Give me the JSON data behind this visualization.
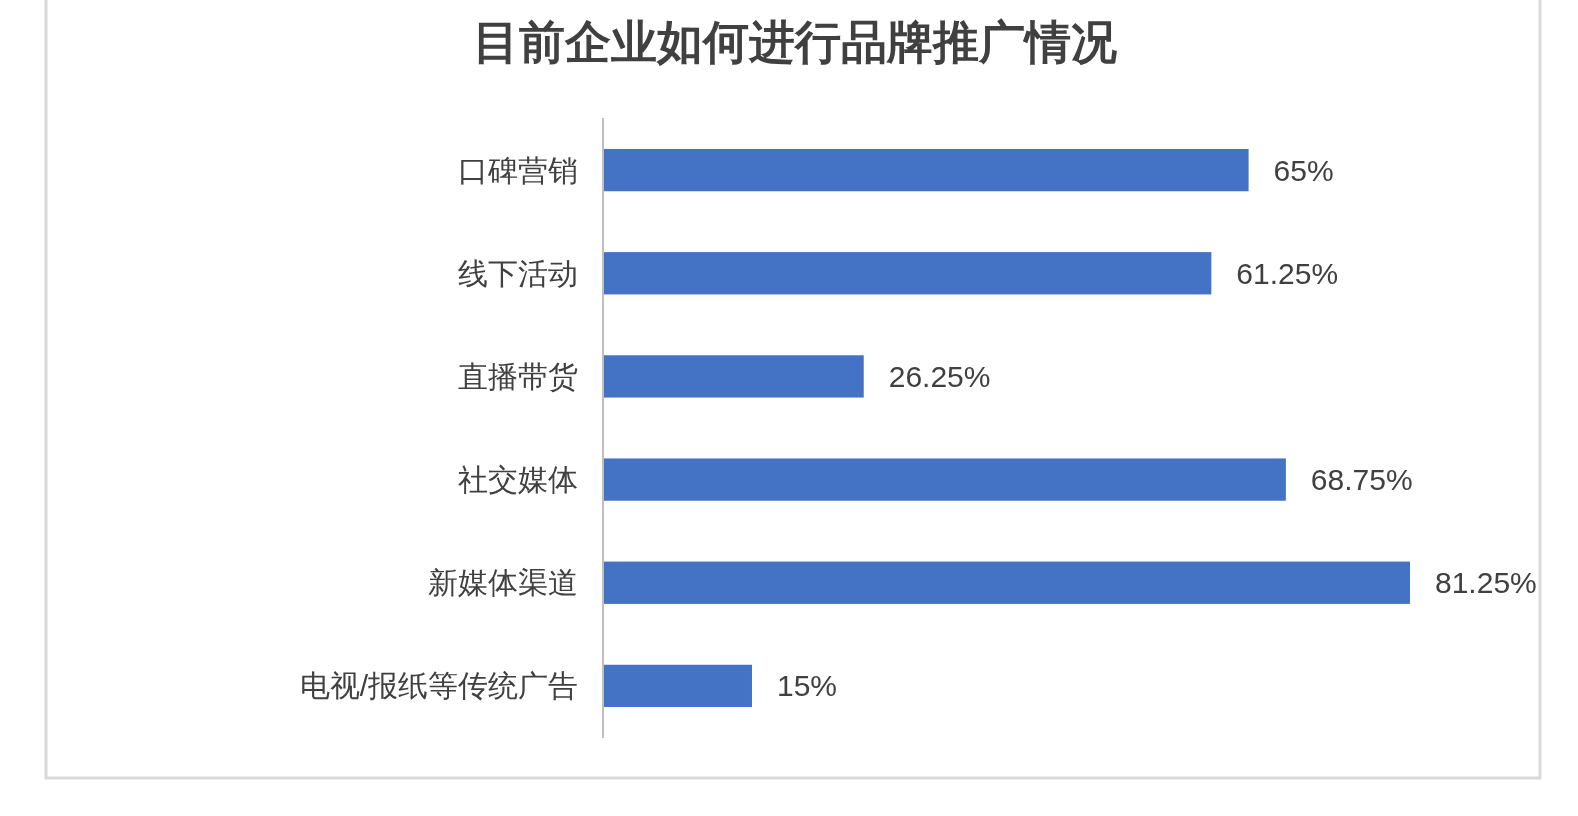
{
  "chart_data": {
    "type": "bar",
    "orientation": "horizontal",
    "title": "目前企业如何进行品牌推广情况",
    "categories": [
      "口碑营销",
      "线下活动",
      "直播带货",
      "社交媒体",
      "新媒体渠道",
      "电视/报纸等传统广告"
    ],
    "values": [
      65,
      61.25,
      26.25,
      68.75,
      81.25,
      15
    ],
    "value_labels": [
      "65%",
      "61.25%",
      "26.25%",
      "68.75%",
      "81.25%",
      "15%"
    ],
    "color": "#4472c4"
  }
}
